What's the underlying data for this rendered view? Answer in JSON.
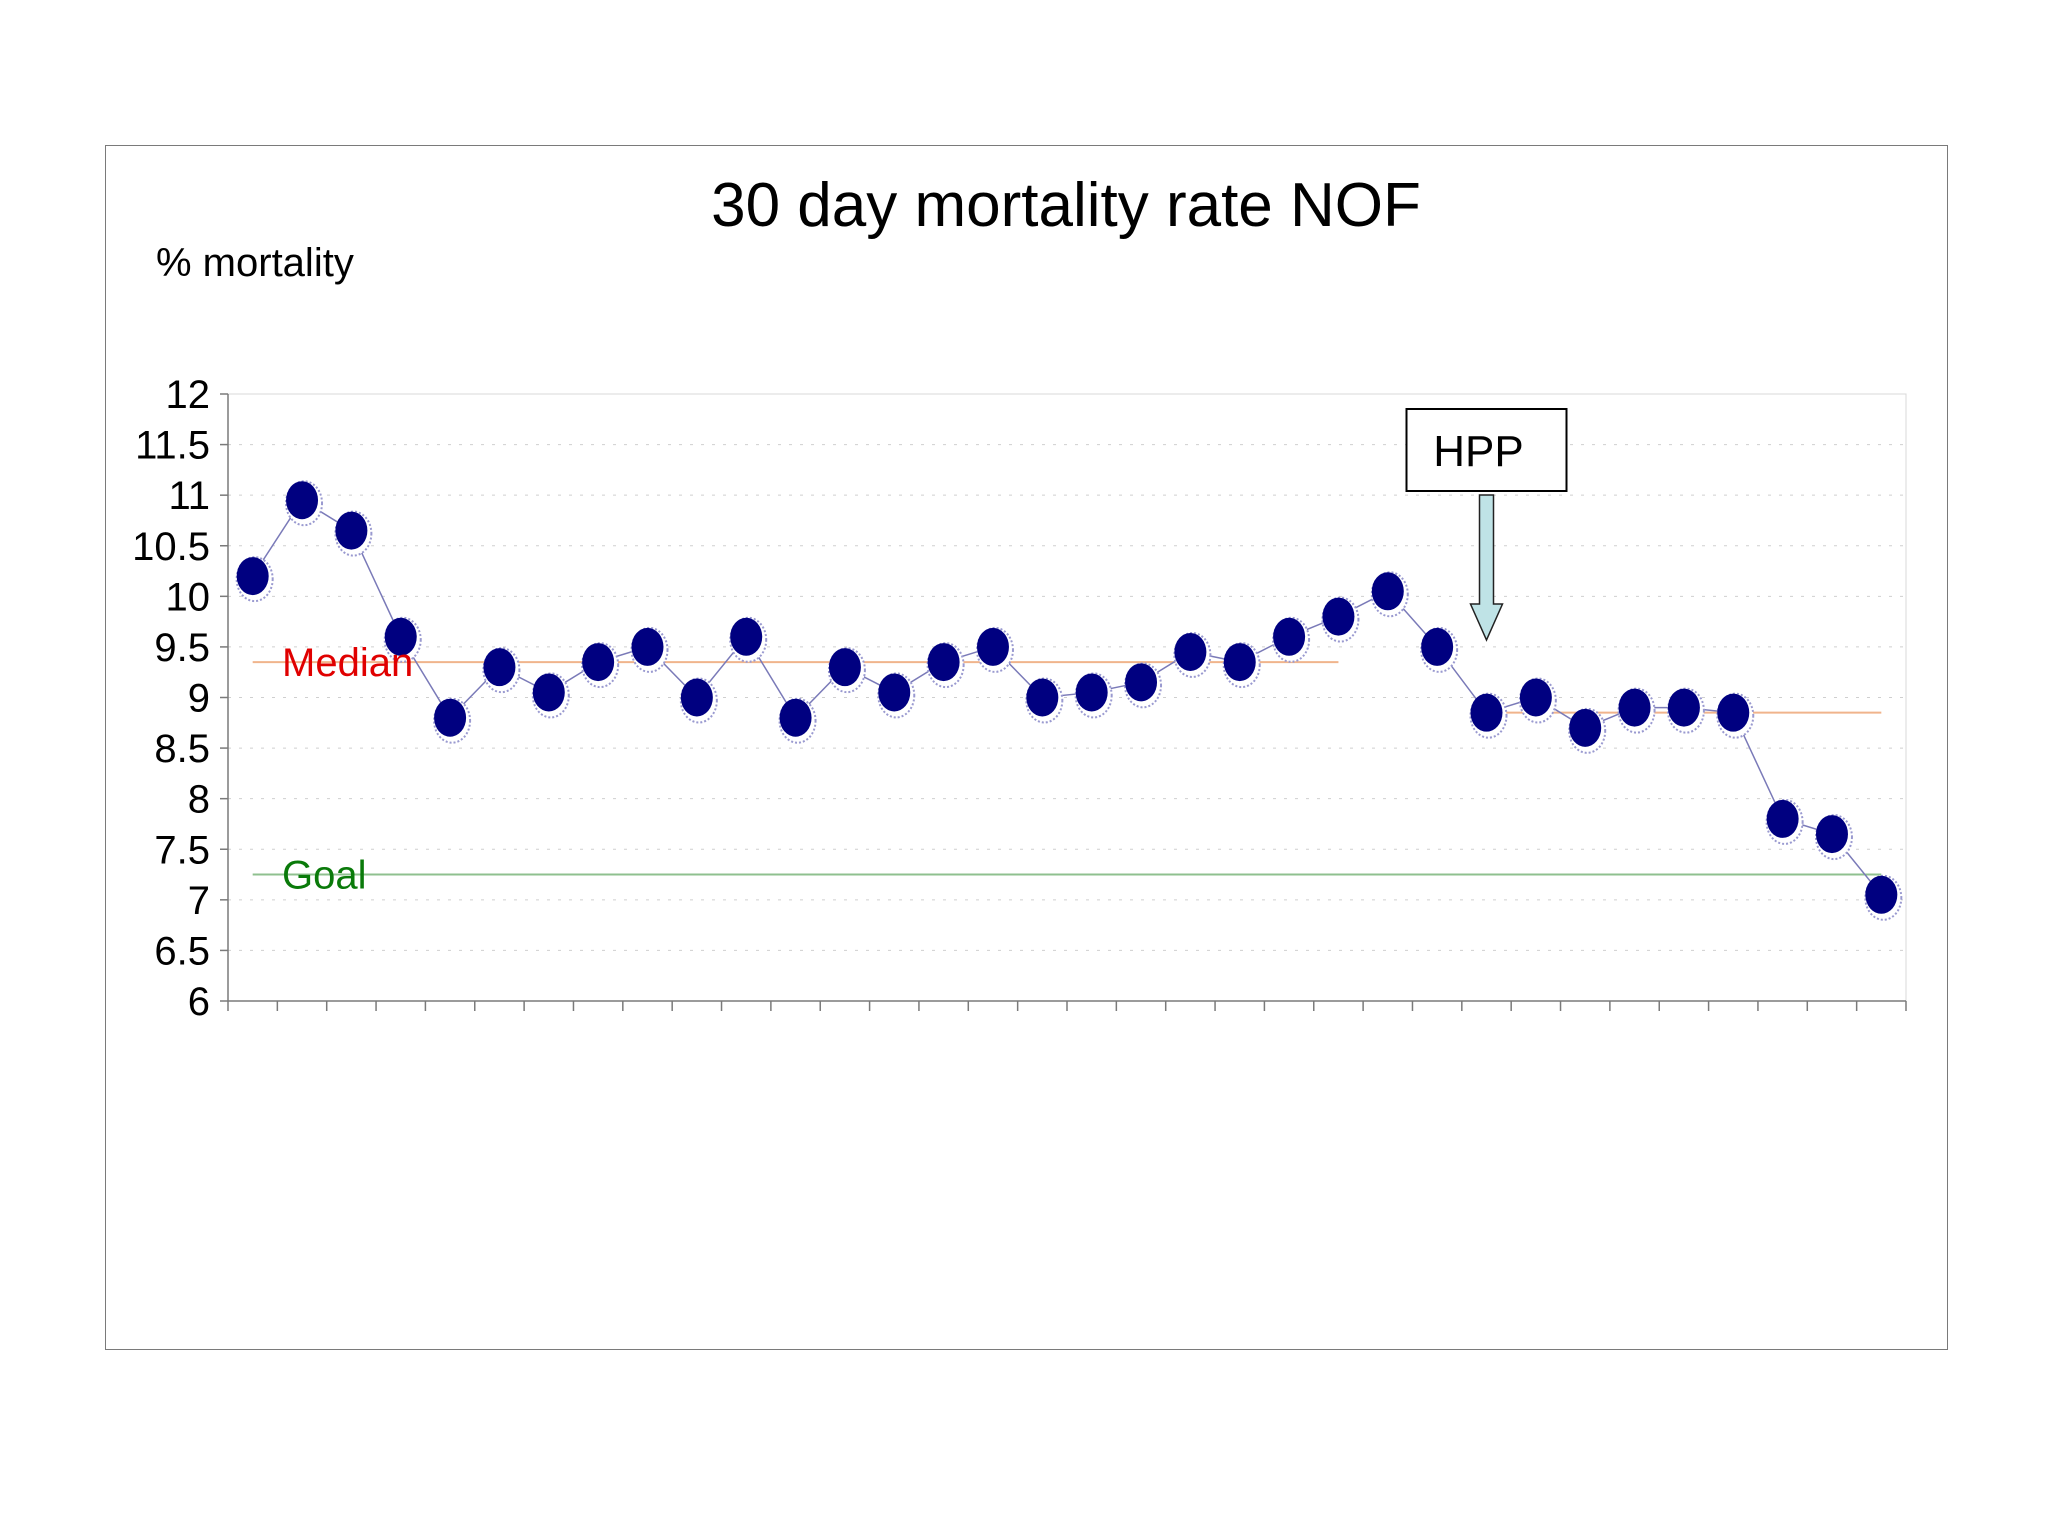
{
  "chart_data": {
    "type": "line",
    "title": "30 day mortality rate NOF",
    "ylabel": "% mortality",
    "xlabel": "",
    "ylim": [
      6,
      12
    ],
    "yticks": [
      "12",
      "11.5",
      "11",
      "10.5",
      "10",
      "9.5",
      "9",
      "8.5",
      "8",
      "7.5",
      "7",
      "6.5",
      "6"
    ],
    "x_categories_count": 34,
    "series": [
      {
        "values": [
          10.2,
          10.95,
          10.65,
          9.6,
          8.8,
          9.3,
          9.05,
          9.35,
          9.5,
          9.0,
          9.6,
          8.8,
          9.3,
          9.05,
          9.35,
          9.5,
          9.0,
          9.05,
          9.15,
          9.45,
          9.35,
          9.6,
          9.8,
          10.05,
          9.5,
          8.85,
          9.0,
          8.7,
          8.9,
          8.9,
          8.85,
          7.8,
          7.65,
          7.05
        ]
      }
    ],
    "reference_lines": [
      {
        "label": "Median",
        "value": 9.35,
        "color": "#f0b48c",
        "label_color": "#e00000",
        "from_index": 0,
        "to_index": 22
      },
      {
        "label": "Median",
        "value": 8.85,
        "color": "#f0b48c",
        "from_index": 25,
        "to_index": 33
      },
      {
        "label": "Goal",
        "value": 7.25,
        "color": "#8fc08f",
        "label_color": "#0a7a0a",
        "from_index": 0,
        "to_index": 33
      }
    ],
    "annotation": {
      "label": "HPP",
      "index": 25,
      "arrow_color": "#bfe3e6"
    },
    "grid": "horizontal dotted",
    "colors": {
      "marker": "#000080",
      "line": "#7a7ab8"
    }
  }
}
